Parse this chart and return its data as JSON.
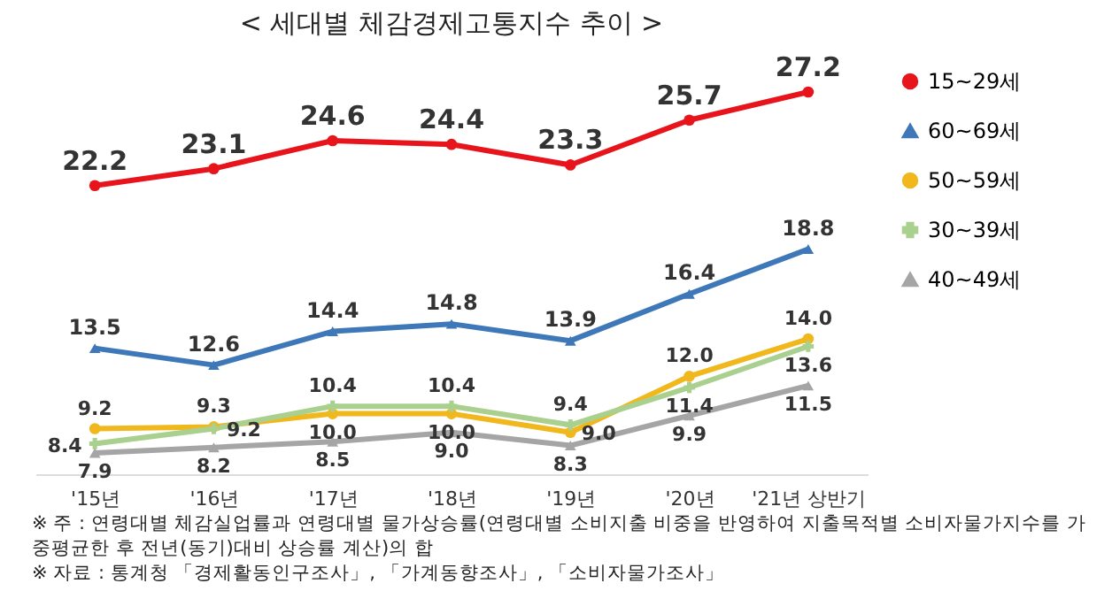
{
  "chart_data": {
    "type": "line",
    "title": "< 세대별 체감경제고통지수 추이 >",
    "categories": [
      "'15년",
      "'16년",
      "'17년",
      "'18년",
      "'19년",
      "'20년",
      "'21년 상반기"
    ],
    "series": [
      {
        "name": "15~29세",
        "color": "#e8141c",
        "marker": "circle",
        "values": [
          22.2,
          23.1,
          24.6,
          24.4,
          23.3,
          25.7,
          27.2
        ],
        "value_labels": [
          "22.2",
          "23.1",
          "24.6",
          "24.4",
          "23.3",
          "25.7",
          "27.2"
        ]
      },
      {
        "name": "60~69세",
        "color": "#3f78b8",
        "marker": "triangle",
        "values": [
          13.5,
          12.6,
          14.4,
          14.8,
          13.9,
          16.4,
          18.8
        ],
        "value_labels": [
          "13.5",
          "12.6",
          "14.4",
          "14.8",
          "13.9",
          "16.4",
          "18.8"
        ]
      },
      {
        "name": "50~59세",
        "color": "#f0b81c",
        "marker": "circle",
        "values": [
          9.2,
          9.3,
          10.0,
          10.0,
          9.0,
          12.0,
          14.0
        ],
        "value_labels": [
          "9.2",
          "9.3",
          "10.0",
          "10.0",
          "9.0",
          "12.0",
          "14.0"
        ]
      },
      {
        "name": "30~39세",
        "color": "#a9d08e",
        "marker": "cross",
        "values": [
          8.4,
          9.2,
          10.4,
          10.4,
          9.4,
          11.4,
          13.6
        ],
        "value_labels": [
          "8.4",
          "9.2",
          "10.4",
          "10.4",
          "9.4",
          "11.4",
          "13.6"
        ]
      },
      {
        "name": "40~49세",
        "color": "#a5a5a5",
        "marker": "triangle",
        "values": [
          7.9,
          8.2,
          8.5,
          9.0,
          8.3,
          9.9,
          11.5
        ],
        "value_labels": [
          "7.9",
          "8.2",
          "8.5",
          "9.0",
          "8.3",
          "9.9",
          "11.5"
        ]
      }
    ],
    "legend": "right",
    "line_style": "solid",
    "tick_labels": "x",
    "annotations": [
      "※ 주 : 연령대별 체감실업률과 연령대별 물가상승률(연령대별 소비지출 비중을 반영하여 지출목적별 소비자물가지수를 가중평균한 후 전년(동기)대비 상승률 계산)의 합",
      "※ 자료 : 통계청 「경제활동인구조사」, 「가계동향조사」, 「소비자물가조사」"
    ]
  }
}
